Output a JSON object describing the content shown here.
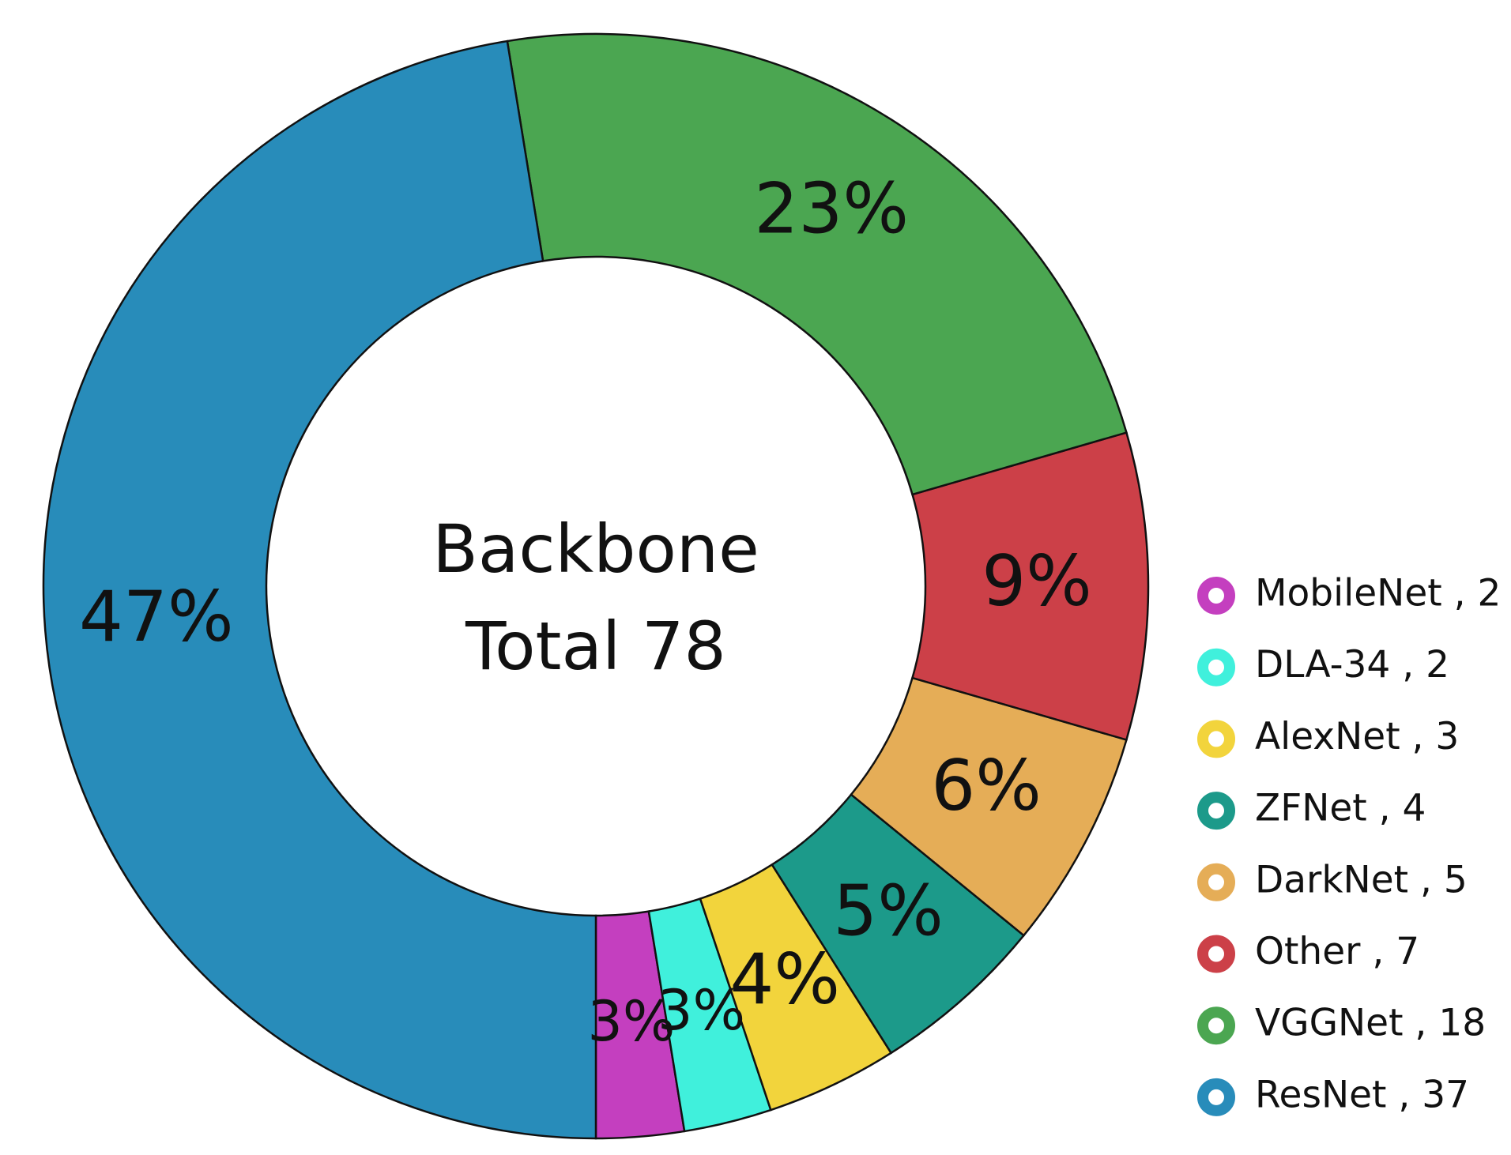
{
  "chart_data": {
    "type": "donut",
    "center_text": [
      "Backbone",
      "Total 78"
    ],
    "categories": [
      "MobileNet , 2",
      "DLA-34 , 2",
      "AlexNet , 3",
      "ZFNet , 4",
      "DarkNet , 5",
      "Other , 7",
      "VGGNet , 18",
      "ResNet , 37"
    ],
    "values": [
      2,
      2,
      3,
      4,
      5,
      7,
      18,
      37
    ],
    "value_labels": [
      "3%",
      "3%",
      "4%",
      "5%",
      "6%",
      "9%",
      "23%",
      "47%"
    ],
    "colors": [
      "#c43fbf",
      "#40f0dc",
      "#f2d43c",
      "#1c9a8a",
      "#e5ad57",
      "#cc4048",
      "#4ba651",
      "#288cba"
    ],
    "legend": "right"
  }
}
